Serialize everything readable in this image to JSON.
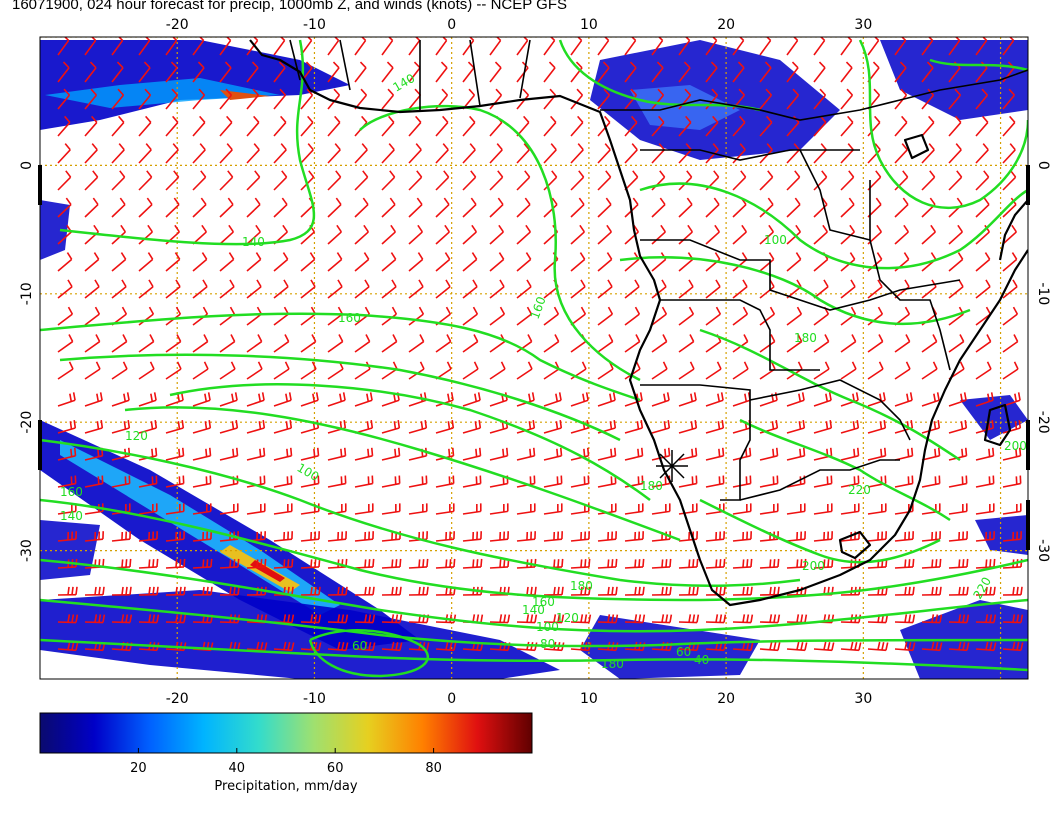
{
  "title": "16071900, 024 hour forecast for precip, 1000mb Z, and winds (knots) -- NCEP GFS",
  "lon_ticks": [
    "-20",
    "-10",
    "0",
    "10",
    "20",
    "30"
  ],
  "lat_ticks": [
    "0",
    "-10",
    "-20",
    "-30"
  ],
  "colorbar": {
    "label": "Precipitation, mm/day",
    "ticks": [
      "20",
      "40",
      "60",
      "80"
    ],
    "range": [
      0,
      100
    ],
    "colors": [
      "#0a0a6e",
      "#0000c8",
      "#0060ff",
      "#00b4ff",
      "#33dccc",
      "#9ee070",
      "#e6d020",
      "#ff8000",
      "#e01010",
      "#600000"
    ]
  },
  "map": {
    "lon_range": [
      -30,
      42
    ],
    "lat_range": [
      -40,
      10
    ],
    "grid": true,
    "marker": "cross near 15E, 24S",
    "contour_labels": [
      "140",
      "140",
      "160",
      "160",
      "180",
      "180",
      "100",
      "120",
      "140",
      "160",
      "60",
      "80",
      "100",
      "120",
      "140",
      "160",
      "180",
      "220",
      "200",
      "100",
      "200",
      "180",
      "60",
      "40",
      "220"
    ],
    "colors": {
      "coast": "#000000",
      "contour": "#22dd22",
      "barb": "#ee1111",
      "grid": "#d6a000"
    }
  }
}
